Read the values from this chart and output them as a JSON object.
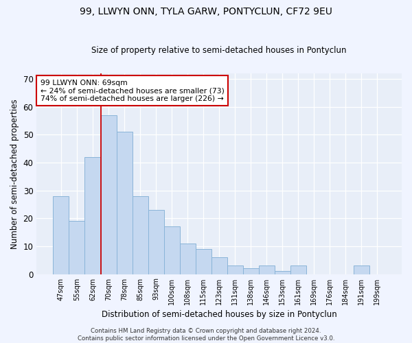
{
  "title1": "99, LLWYN ONN, TYLA GARW, PONTYCLUN, CF72 9EU",
  "title2": "Size of property relative to semi-detached houses in Pontyclun",
  "xlabel": "Distribution of semi-detached houses by size in Pontyclun",
  "ylabel": "Number of semi-detached properties",
  "categories": [
    "47sqm",
    "55sqm",
    "62sqm",
    "70sqm",
    "78sqm",
    "85sqm",
    "93sqm",
    "100sqm",
    "108sqm",
    "115sqm",
    "123sqm",
    "131sqm",
    "138sqm",
    "146sqm",
    "153sqm",
    "161sqm",
    "169sqm",
    "176sqm",
    "184sqm",
    "191sqm",
    "199sqm"
  ],
  "values": [
    28,
    19,
    42,
    57,
    51,
    28,
    23,
    17,
    11,
    9,
    6,
    3,
    2,
    3,
    1,
    3,
    0,
    0,
    0,
    3,
    0
  ],
  "bar_color": "#c5d8f0",
  "bar_edge_color": "#8ab4d8",
  "red_line_index": 3,
  "annotation_title": "99 LLWYN ONN: 69sqm",
  "annotation_line1": "← 24% of semi-detached houses are smaller (73)",
  "annotation_line2": "74% of semi-detached houses are larger (226) →",
  "annotation_box_color": "#ffffff",
  "annotation_box_edge": "#cc0000",
  "footer1": "Contains HM Land Registry data © Crown copyright and database right 2024.",
  "footer2": "Contains public sector information licensed under the Open Government Licence v3.0.",
  "fig_bg_color": "#f0f4ff",
  "ax_bg_color": "#e8eef8",
  "grid_color": "#ffffff",
  "ylim": [
    0,
    72
  ],
  "yticks": [
    0,
    10,
    20,
    30,
    40,
    50,
    60,
    70
  ]
}
